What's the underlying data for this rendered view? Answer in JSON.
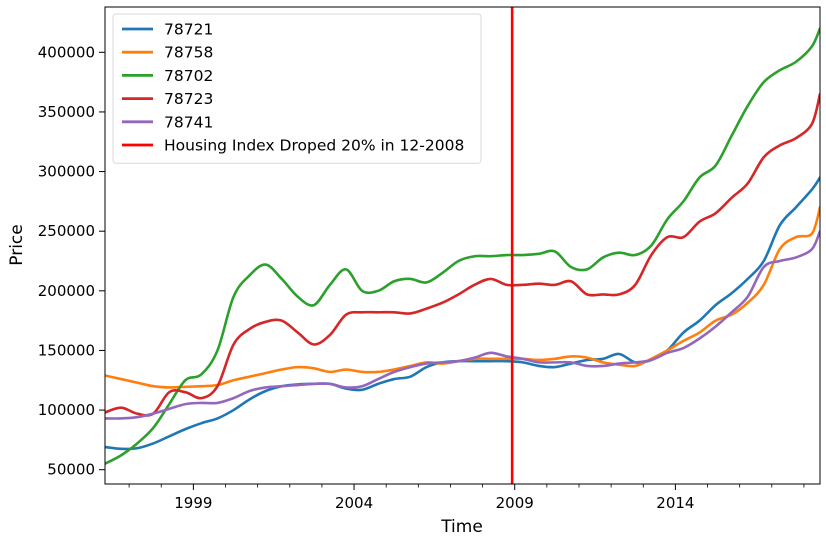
{
  "chart_data": {
    "type": "line",
    "xlabel": "Time",
    "ylabel": "Price",
    "xlim": [
      1996.25,
      2018.5
    ],
    "ylim": [
      38000,
      438000
    ],
    "x_ticks": [
      1999,
      2004,
      2009,
      2014
    ],
    "y_ticks": [
      50000,
      100000,
      150000,
      200000,
      250000,
      300000,
      350000,
      400000
    ],
    "grid": false,
    "legend_position": "top-left",
    "series": [
      {
        "name": "78721",
        "color": "#1f77b4",
        "x": [
          1996.25,
          1996.75,
          1997.25,
          1997.75,
          1998.25,
          1998.75,
          1999.25,
          1999.75,
          2000.25,
          2000.75,
          2001.25,
          2001.75,
          2002.25,
          2002.75,
          2003.25,
          2003.75,
          2004.25,
          2004.75,
          2005.25,
          2005.75,
          2006.25,
          2006.75,
          2007.25,
          2007.75,
          2008.25,
          2008.75,
          2009.25,
          2009.75,
          2010.25,
          2010.75,
          2011.25,
          2011.75,
          2012.25,
          2012.75,
          2013.25,
          2013.75,
          2014.25,
          2014.75,
          2015.25,
          2015.75,
          2016.25,
          2016.75,
          2017.25,
          2017.75,
          2018.25,
          2018.5
        ],
        "y": [
          69000,
          67500,
          68000,
          72000,
          78000,
          84000,
          89000,
          93000,
          100000,
          109000,
          116000,
          120000,
          121500,
          122000,
          122000,
          118000,
          117000,
          122000,
          126000,
          128000,
          136000,
          140000,
          141000,
          141000,
          141000,
          141000,
          140000,
          137000,
          136000,
          139000,
          142000,
          143000,
          147000,
          140000,
          142000,
          150000,
          165000,
          175000,
          188000,
          198000,
          210000,
          225000,
          255000,
          270000,
          285000,
          295000
        ]
      },
      {
        "name": "78758",
        "color": "#ff7f0e",
        "x": [
          1996.25,
          1996.75,
          1997.25,
          1997.75,
          1998.25,
          1998.75,
          1999.25,
          1999.75,
          2000.25,
          2000.75,
          2001.25,
          2001.75,
          2002.25,
          2002.75,
          2003.25,
          2003.75,
          2004.25,
          2004.75,
          2005.25,
          2005.75,
          2006.25,
          2006.75,
          2007.25,
          2007.75,
          2008.25,
          2008.75,
          2009.25,
          2009.75,
          2010.25,
          2010.75,
          2011.25,
          2011.75,
          2012.25,
          2012.75,
          2013.25,
          2013.75,
          2014.25,
          2014.75,
          2015.25,
          2015.75,
          2016.25,
          2016.75,
          2017.25,
          2017.75,
          2018.25,
          2018.5
        ],
        "y": [
          129000,
          126000,
          123000,
          120000,
          119000,
          119500,
          120000,
          121000,
          125000,
          128000,
          131000,
          134000,
          136000,
          135000,
          132000,
          134000,
          132000,
          132000,
          134000,
          137000,
          140000,
          139000,
          141000,
          143000,
          143000,
          143000,
          143000,
          142000,
          143000,
          145000,
          144000,
          140000,
          138000,
          137000,
          143000,
          150000,
          158000,
          165000,
          175000,
          180000,
          190000,
          205000,
          235000,
          245000,
          248000,
          270000
        ]
      },
      {
        "name": "78702",
        "color": "#2ca02c",
        "x": [
          1996.25,
          1996.75,
          1997.25,
          1997.75,
          1998.25,
          1998.75,
          1999.25,
          1999.75,
          2000.25,
          2000.75,
          2001.25,
          2001.75,
          2002.25,
          2002.75,
          2003.25,
          2003.75,
          2004.25,
          2004.75,
          2005.25,
          2005.75,
          2006.25,
          2006.75,
          2007.25,
          2007.75,
          2008.25,
          2008.75,
          2009.25,
          2009.75,
          2010.25,
          2010.75,
          2011.25,
          2011.75,
          2012.25,
          2012.75,
          2013.25,
          2013.75,
          2014.25,
          2014.75,
          2015.25,
          2015.75,
          2016.25,
          2016.75,
          2017.25,
          2017.75,
          2018.25,
          2018.5
        ],
        "y": [
          55000,
          62000,
          72000,
          85000,
          105000,
          125000,
          130000,
          150000,
          195000,
          213000,
          222000,
          210000,
          195000,
          188000,
          205000,
          218000,
          200000,
          200000,
          208000,
          210000,
          207000,
          215000,
          225000,
          229000,
          229000,
          230000,
          230000,
          231000,
          233000,
          220000,
          218000,
          228000,
          232000,
          230000,
          238000,
          260000,
          275000,
          295000,
          305000,
          330000,
          355000,
          375000,
          385000,
          392000,
          405000,
          420000
        ]
      },
      {
        "name": "78723",
        "color": "#d62728",
        "x": [
          1996.25,
          1996.75,
          1997.25,
          1997.75,
          1998.25,
          1998.75,
          1999.25,
          1999.75,
          2000.25,
          2000.75,
          2001.25,
          2001.75,
          2002.25,
          2002.75,
          2003.25,
          2003.75,
          2004.25,
          2004.75,
          2005.25,
          2005.75,
          2006.25,
          2006.75,
          2007.25,
          2007.75,
          2008.25,
          2008.75,
          2009.25,
          2009.75,
          2010.25,
          2010.75,
          2011.25,
          2011.75,
          2012.25,
          2012.75,
          2013.25,
          2013.75,
          2014.25,
          2014.75,
          2015.25,
          2015.75,
          2016.25,
          2016.75,
          2017.25,
          2017.75,
          2018.25,
          2018.5
        ],
        "y": [
          98000,
          102000,
          97000,
          97000,
          115000,
          115000,
          110000,
          120000,
          155000,
          168000,
          174000,
          175000,
          165000,
          155000,
          163000,
          180000,
          182000,
          182000,
          182000,
          181000,
          185000,
          190000,
          197000,
          205000,
          210000,
          205000,
          205000,
          206000,
          205000,
          208000,
          197000,
          197000,
          197000,
          205000,
          230000,
          245000,
          245000,
          258000,
          265000,
          278000,
          290000,
          312000,
          322000,
          328000,
          340000,
          365000
        ]
      },
      {
        "name": "78741",
        "color": "#9467bd",
        "x": [
          1996.25,
          1996.75,
          1997.25,
          1997.75,
          1998.25,
          1998.75,
          1999.25,
          1999.75,
          2000.25,
          2000.75,
          2001.25,
          2001.75,
          2002.25,
          2002.75,
          2003.25,
          2003.75,
          2004.25,
          2004.75,
          2005.25,
          2005.75,
          2006.25,
          2006.75,
          2007.25,
          2007.75,
          2008.25,
          2008.75,
          2009.25,
          2009.75,
          2010.25,
          2010.75,
          2011.25,
          2011.75,
          2012.25,
          2012.75,
          2013.25,
          2013.75,
          2014.25,
          2014.75,
          2015.25,
          2015.75,
          2016.25,
          2016.75,
          2017.25,
          2017.75,
          2018.25,
          2018.5
        ],
        "y": [
          93000,
          93000,
          94000,
          97000,
          101000,
          105000,
          106000,
          106000,
          110000,
          116000,
          119000,
          120000,
          121000,
          122000,
          122000,
          119000,
          120000,
          126000,
          132000,
          136000,
          139000,
          140000,
          141000,
          144000,
          148000,
          145000,
          143000,
          140000,
          140000,
          140000,
          137000,
          137000,
          139000,
          140000,
          142000,
          148000,
          152000,
          160000,
          170000,
          182000,
          195000,
          220000,
          225000,
          228000,
          235000,
          250000
        ]
      },
      {
        "name": "Housing Index Droped 20% in 12-2008",
        "color": "#ff0000",
        "type": "vline",
        "x": 2008.92
      }
    ]
  }
}
